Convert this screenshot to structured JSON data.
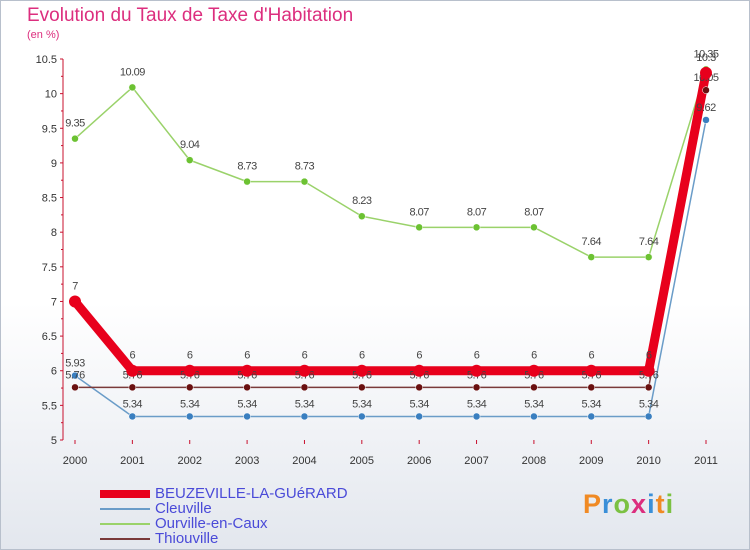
{
  "header": {
    "title": "Evolution du Taux de Taxe d'Habitation",
    "subtitle": "(en %)"
  },
  "logo": {
    "text": "Proxiti",
    "colors": [
      "#f08a24",
      "#3a8fd8",
      "#7bc142",
      "#dc2e7e",
      "#3a8fd8",
      "#f08a24",
      "#7bc142"
    ]
  },
  "chart_data": {
    "type": "line",
    "title": "Evolution du Taux de Taxe d'Habitation",
    "ylabel": "(en %)",
    "xlabel": "",
    "categories": [
      "2000",
      "2001",
      "2002",
      "2003",
      "2004",
      "2005",
      "2006",
      "2007",
      "2008",
      "2009",
      "2010",
      "2011"
    ],
    "ylim": [
      5,
      10.5
    ],
    "yticks": [
      "5",
      "5.5",
      "6",
      "6.5",
      "7",
      "7.5",
      "8",
      "8.5",
      "9",
      "9.5",
      "10",
      "10.5"
    ],
    "legend_position": "bottom-left",
    "series": [
      {
        "name": "BEUZEVILLE-LA-GUéRARD",
        "color": "#e8001c",
        "point_color": "#e8001c",
        "values": [
          7,
          6,
          6,
          6,
          6,
          6,
          6,
          6,
          6,
          6,
          6,
          10.3
        ],
        "labels": [
          "7",
          "6",
          "6",
          "6",
          "6",
          "6",
          "6",
          "6",
          "6",
          "6",
          "6",
          "10.3"
        ]
      },
      {
        "name": "Cleuville",
        "color": "#6a9cc8",
        "point_color": "#3a7fc0",
        "values": [
          5.93,
          5.34,
          5.34,
          5.34,
          5.34,
          5.34,
          5.34,
          5.34,
          5.34,
          5.34,
          5.34,
          9.62
        ],
        "labels": [
          "5.93",
          "5.34",
          "5.34",
          "5.34",
          "5.34",
          "5.34",
          "5.34",
          "5.34",
          "5.34",
          "5.34",
          "5.34",
          "9.62"
        ]
      },
      {
        "name": "Ourville-en-Caux",
        "color": "#9ad26a",
        "point_color": "#6cc232",
        "values": [
          9.35,
          10.09,
          9.04,
          8.73,
          8.73,
          8.23,
          8.07,
          8.07,
          8.07,
          7.64,
          7.64,
          10.35
        ],
        "labels": [
          "9.35",
          "10.09",
          "9.04",
          "8.73",
          "8.73",
          "8.23",
          "8.07",
          "8.07",
          "8.07",
          "7.64",
          "7.64",
          "10.35"
        ]
      },
      {
        "name": "Thiouville",
        "color": "#7a3a3a",
        "point_color": "#6a1010",
        "values": [
          5.76,
          5.76,
          5.76,
          5.76,
          5.76,
          5.76,
          5.76,
          5.76,
          5.76,
          5.76,
          5.76,
          10.05
        ],
        "labels": [
          "5.76",
          "5.76",
          "5.76",
          "5.76",
          "5.76",
          "5.76",
          "5.76",
          "5.76",
          "5.76",
          "5.76",
          "5.76",
          "10.05"
        ]
      }
    ]
  }
}
